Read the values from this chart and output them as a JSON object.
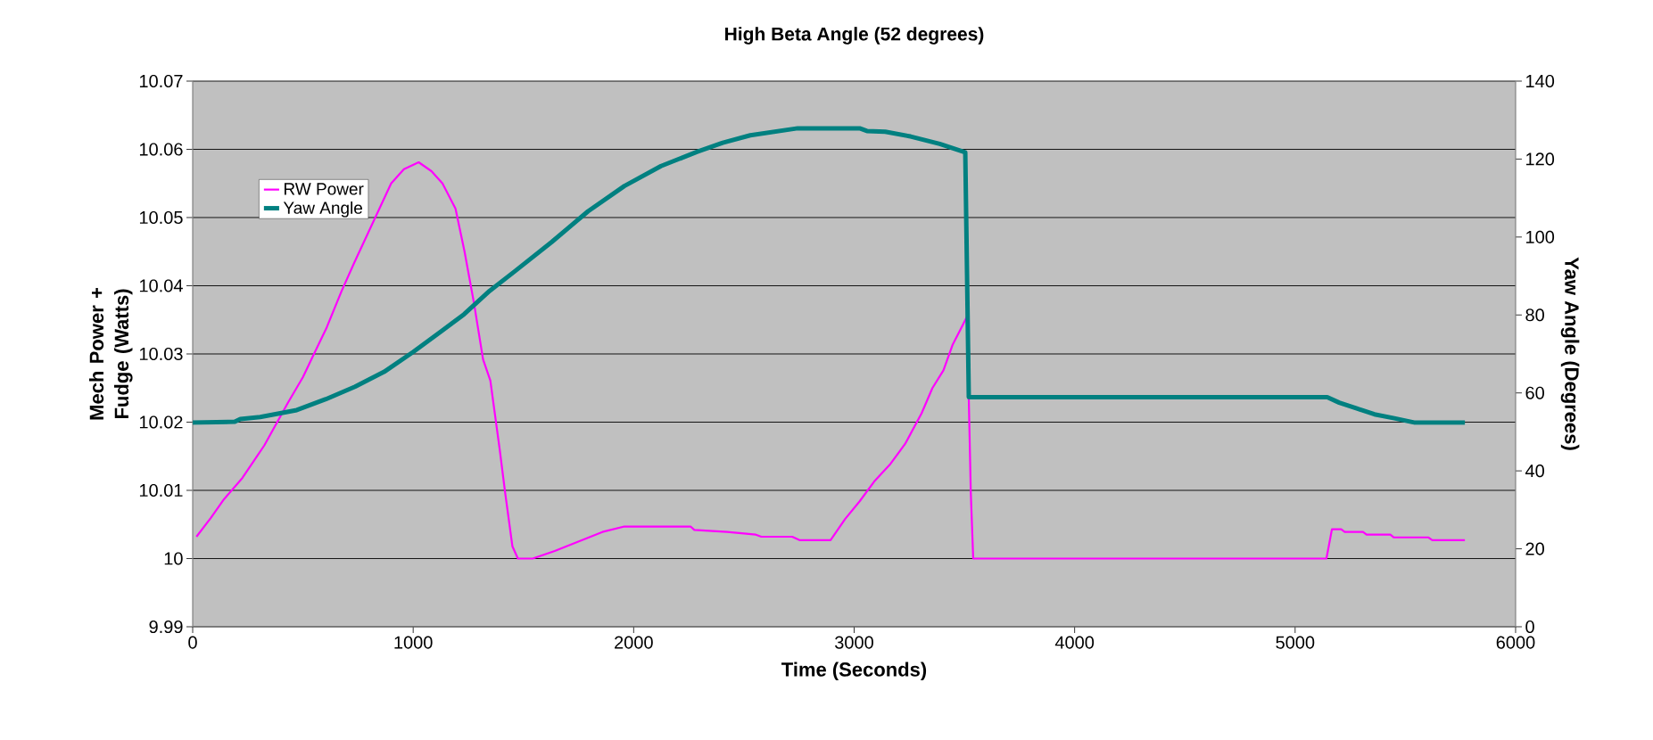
{
  "chart_data": {
    "type": "line",
    "title": "High Beta Angle (52 degrees)",
    "xlabel": "Time (Seconds)",
    "ylabel": "Mech Power + Fudge (Watts)",
    "y2label": "Yaw Angle (Degrees)",
    "xlim": [
      0,
      6000
    ],
    "xticks": [
      0,
      1000,
      2000,
      3000,
      4000,
      5000,
      6000
    ],
    "ylim": [
      9.99,
      10.07
    ],
    "yticks": [
      9.99,
      10,
      10.01,
      10.02,
      10.03,
      10.04,
      10.05,
      10.06,
      10.07
    ],
    "y2lim": [
      0,
      140
    ],
    "y2ticks": [
      0,
      20,
      40,
      60,
      80,
      100,
      120,
      140
    ],
    "grid": "y",
    "legend": "top left",
    "series": [
      {
        "name": "RW Power",
        "color": "#ff00ff",
        "x": [
          17,
          83,
          142,
          225,
          325,
          433,
          500,
          550,
          608,
          675,
          733,
          900,
          958,
          1025,
          1083,
          1133,
          1192,
          1233,
          1275,
          1317,
          1350,
          1392,
          1417,
          1450,
          1475,
          1542,
          1642,
          1858,
          1958,
          2258,
          2275,
          2425,
          2554,
          2579,
          2719,
          2752,
          2893,
          2959,
          3025,
          3091,
          3165,
          3231,
          3306,
          3355,
          3405,
          3446,
          3487,
          3512,
          3529,
          3540,
          5142,
          5167,
          5209,
          5225,
          5308,
          5324,
          5432,
          5448,
          5605,
          5622,
          5770
        ],
        "values": [
          10.0032,
          10.006,
          10.0087,
          10.0118,
          10.0166,
          10.0229,
          10.0266,
          10.03,
          10.0339,
          10.0392,
          10.0434,
          10.055,
          10.0571,
          10.0581,
          10.0568,
          10.055,
          10.0513,
          10.045,
          10.0376,
          10.0292,
          10.0261,
          10.0161,
          10.0097,
          10.0018,
          10.0,
          10.0,
          10.0011,
          10.0039,
          10.0047,
          10.0047,
          10.0042,
          10.0039,
          10.0035,
          10.0032,
          10.0032,
          10.0027,
          10.0027,
          10.0058,
          10.0084,
          10.0113,
          10.0139,
          10.0168,
          10.0213,
          10.025,
          10.0276,
          10.0313,
          10.0339,
          10.0355,
          10.0097,
          10.0,
          10.0,
          10.0043,
          10.0043,
          10.0039,
          10.0039,
          10.0035,
          10.0035,
          10.0031,
          10.0031,
          10.0027,
          10.0027
        ]
      },
      {
        "name": "Yaw Angle",
        "color": "#008080",
        "axis": "y2",
        "x": [
          0,
          191,
          216,
          306,
          472,
          604,
          736,
          868,
          1000,
          1132,
          1231,
          1347,
          1463,
          1628,
          1793,
          1958,
          2124,
          2289,
          2404,
          2529,
          2744,
          3025,
          3058,
          3141,
          3256,
          3388,
          3504,
          3520,
          5146,
          5200,
          5280,
          5360,
          5450,
          5540,
          5770
        ],
        "values": [
          52.4,
          52.6,
          53.3,
          53.8,
          55.6,
          58.4,
          61.6,
          65.4,
          70.5,
          76.0,
          80.2,
          86.2,
          91.3,
          98.7,
          106.6,
          113.1,
          118.2,
          121.9,
          124.2,
          126.1,
          127.9,
          127.9,
          127.2,
          127.0,
          125.8,
          123.9,
          121.7,
          58.9,
          58.9,
          57.5,
          56.0,
          54.5,
          53.5,
          52.4,
          52.4
        ]
      }
    ]
  }
}
